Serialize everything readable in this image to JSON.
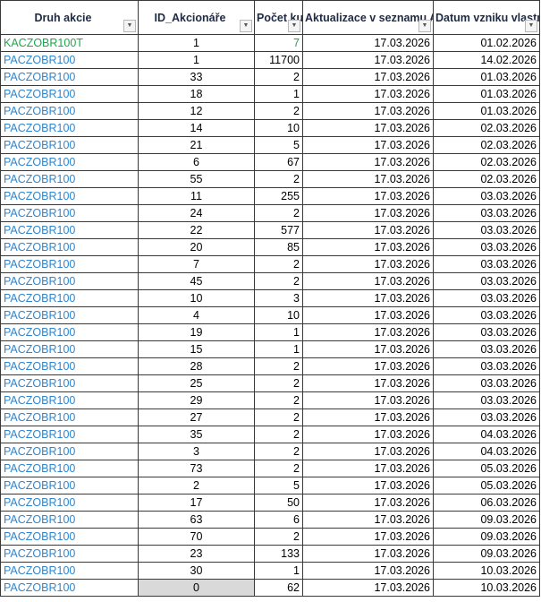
{
  "headers": [
    "Druh akcie",
    "ID_Akcionáře",
    "Počet kusů",
    "Aktualizace v seznamu Akcionářů",
    "Datum vzniku vlastnictví"
  ],
  "filter_icons": [
    "dropdown-arrow",
    "dropdown-arrow",
    "dropdown-arrow",
    "filter-active",
    "dropdown-arrow"
  ],
  "colors": {
    "kac": "#1aa84a",
    "pac": "#2e86d0"
  },
  "rows": [
    [
      "KACZOBR100T",
      "1",
      "7",
      "17.03.2026",
      "01.02.2026"
    ],
    [
      "PACZOBR100",
      "1",
      "11700",
      "17.03.2026",
      "14.02.2026"
    ],
    [
      "PACZOBR100",
      "33",
      "2",
      "17.03.2026",
      "01.03.2026"
    ],
    [
      "PACZOBR100",
      "18",
      "1",
      "17.03.2026",
      "01.03.2026"
    ],
    [
      "PACZOBR100",
      "12",
      "2",
      "17.03.2026",
      "01.03.2026"
    ],
    [
      "PACZOBR100",
      "14",
      "10",
      "17.03.2026",
      "02.03.2026"
    ],
    [
      "PACZOBR100",
      "21",
      "5",
      "17.03.2026",
      "02.03.2026"
    ],
    [
      "PACZOBR100",
      "6",
      "67",
      "17.03.2026",
      "02.03.2026"
    ],
    [
      "PACZOBR100",
      "55",
      "2",
      "17.03.2026",
      "02.03.2026"
    ],
    [
      "PACZOBR100",
      "11",
      "255",
      "17.03.2026",
      "03.03.2026"
    ],
    [
      "PACZOBR100",
      "24",
      "2",
      "17.03.2026",
      "03.03.2026"
    ],
    [
      "PACZOBR100",
      "22",
      "577",
      "17.03.2026",
      "03.03.2026"
    ],
    [
      "PACZOBR100",
      "20",
      "85",
      "17.03.2026",
      "03.03.2026"
    ],
    [
      "PACZOBR100",
      "7",
      "2",
      "17.03.2026",
      "03.03.2026"
    ],
    [
      "PACZOBR100",
      "45",
      "2",
      "17.03.2026",
      "03.03.2026"
    ],
    [
      "PACZOBR100",
      "10",
      "3",
      "17.03.2026",
      "03.03.2026"
    ],
    [
      "PACZOBR100",
      "4",
      "10",
      "17.03.2026",
      "03.03.2026"
    ],
    [
      "PACZOBR100",
      "19",
      "1",
      "17.03.2026",
      "03.03.2026"
    ],
    [
      "PACZOBR100",
      "15",
      "1",
      "17.03.2026",
      "03.03.2026"
    ],
    [
      "PACZOBR100",
      "28",
      "2",
      "17.03.2026",
      "03.03.2026"
    ],
    [
      "PACZOBR100",
      "25",
      "2",
      "17.03.2026",
      "03.03.2026"
    ],
    [
      "PACZOBR100",
      "29",
      "2",
      "17.03.2026",
      "03.03.2026"
    ],
    [
      "PACZOBR100",
      "27",
      "2",
      "17.03.2026",
      "03.03.2026"
    ],
    [
      "PACZOBR100",
      "35",
      "2",
      "17.03.2026",
      "04.03.2026"
    ],
    [
      "PACZOBR100",
      "3",
      "2",
      "17.03.2026",
      "04.03.2026"
    ],
    [
      "PACZOBR100",
      "73",
      "2",
      "17.03.2026",
      "05.03.2026"
    ],
    [
      "PACZOBR100",
      "2",
      "5",
      "17.03.2026",
      "05.03.2026"
    ],
    [
      "PACZOBR100",
      "17",
      "50",
      "17.03.2026",
      "06.03.2026"
    ],
    [
      "PACZOBR100",
      "63",
      "6",
      "17.03.2026",
      "09.03.2026"
    ],
    [
      "PACZOBR100",
      "70",
      "2",
      "17.03.2026",
      "09.03.2026"
    ],
    [
      "PACZOBR100",
      "23",
      "133",
      "17.03.2026",
      "09.03.2026"
    ],
    [
      "PACZOBR100",
      "30",
      "1",
      "17.03.2026",
      "10.03.2026"
    ],
    [
      "PACZOBR100",
      "0",
      "62",
      "17.03.2026",
      "10.03.2026"
    ]
  ]
}
